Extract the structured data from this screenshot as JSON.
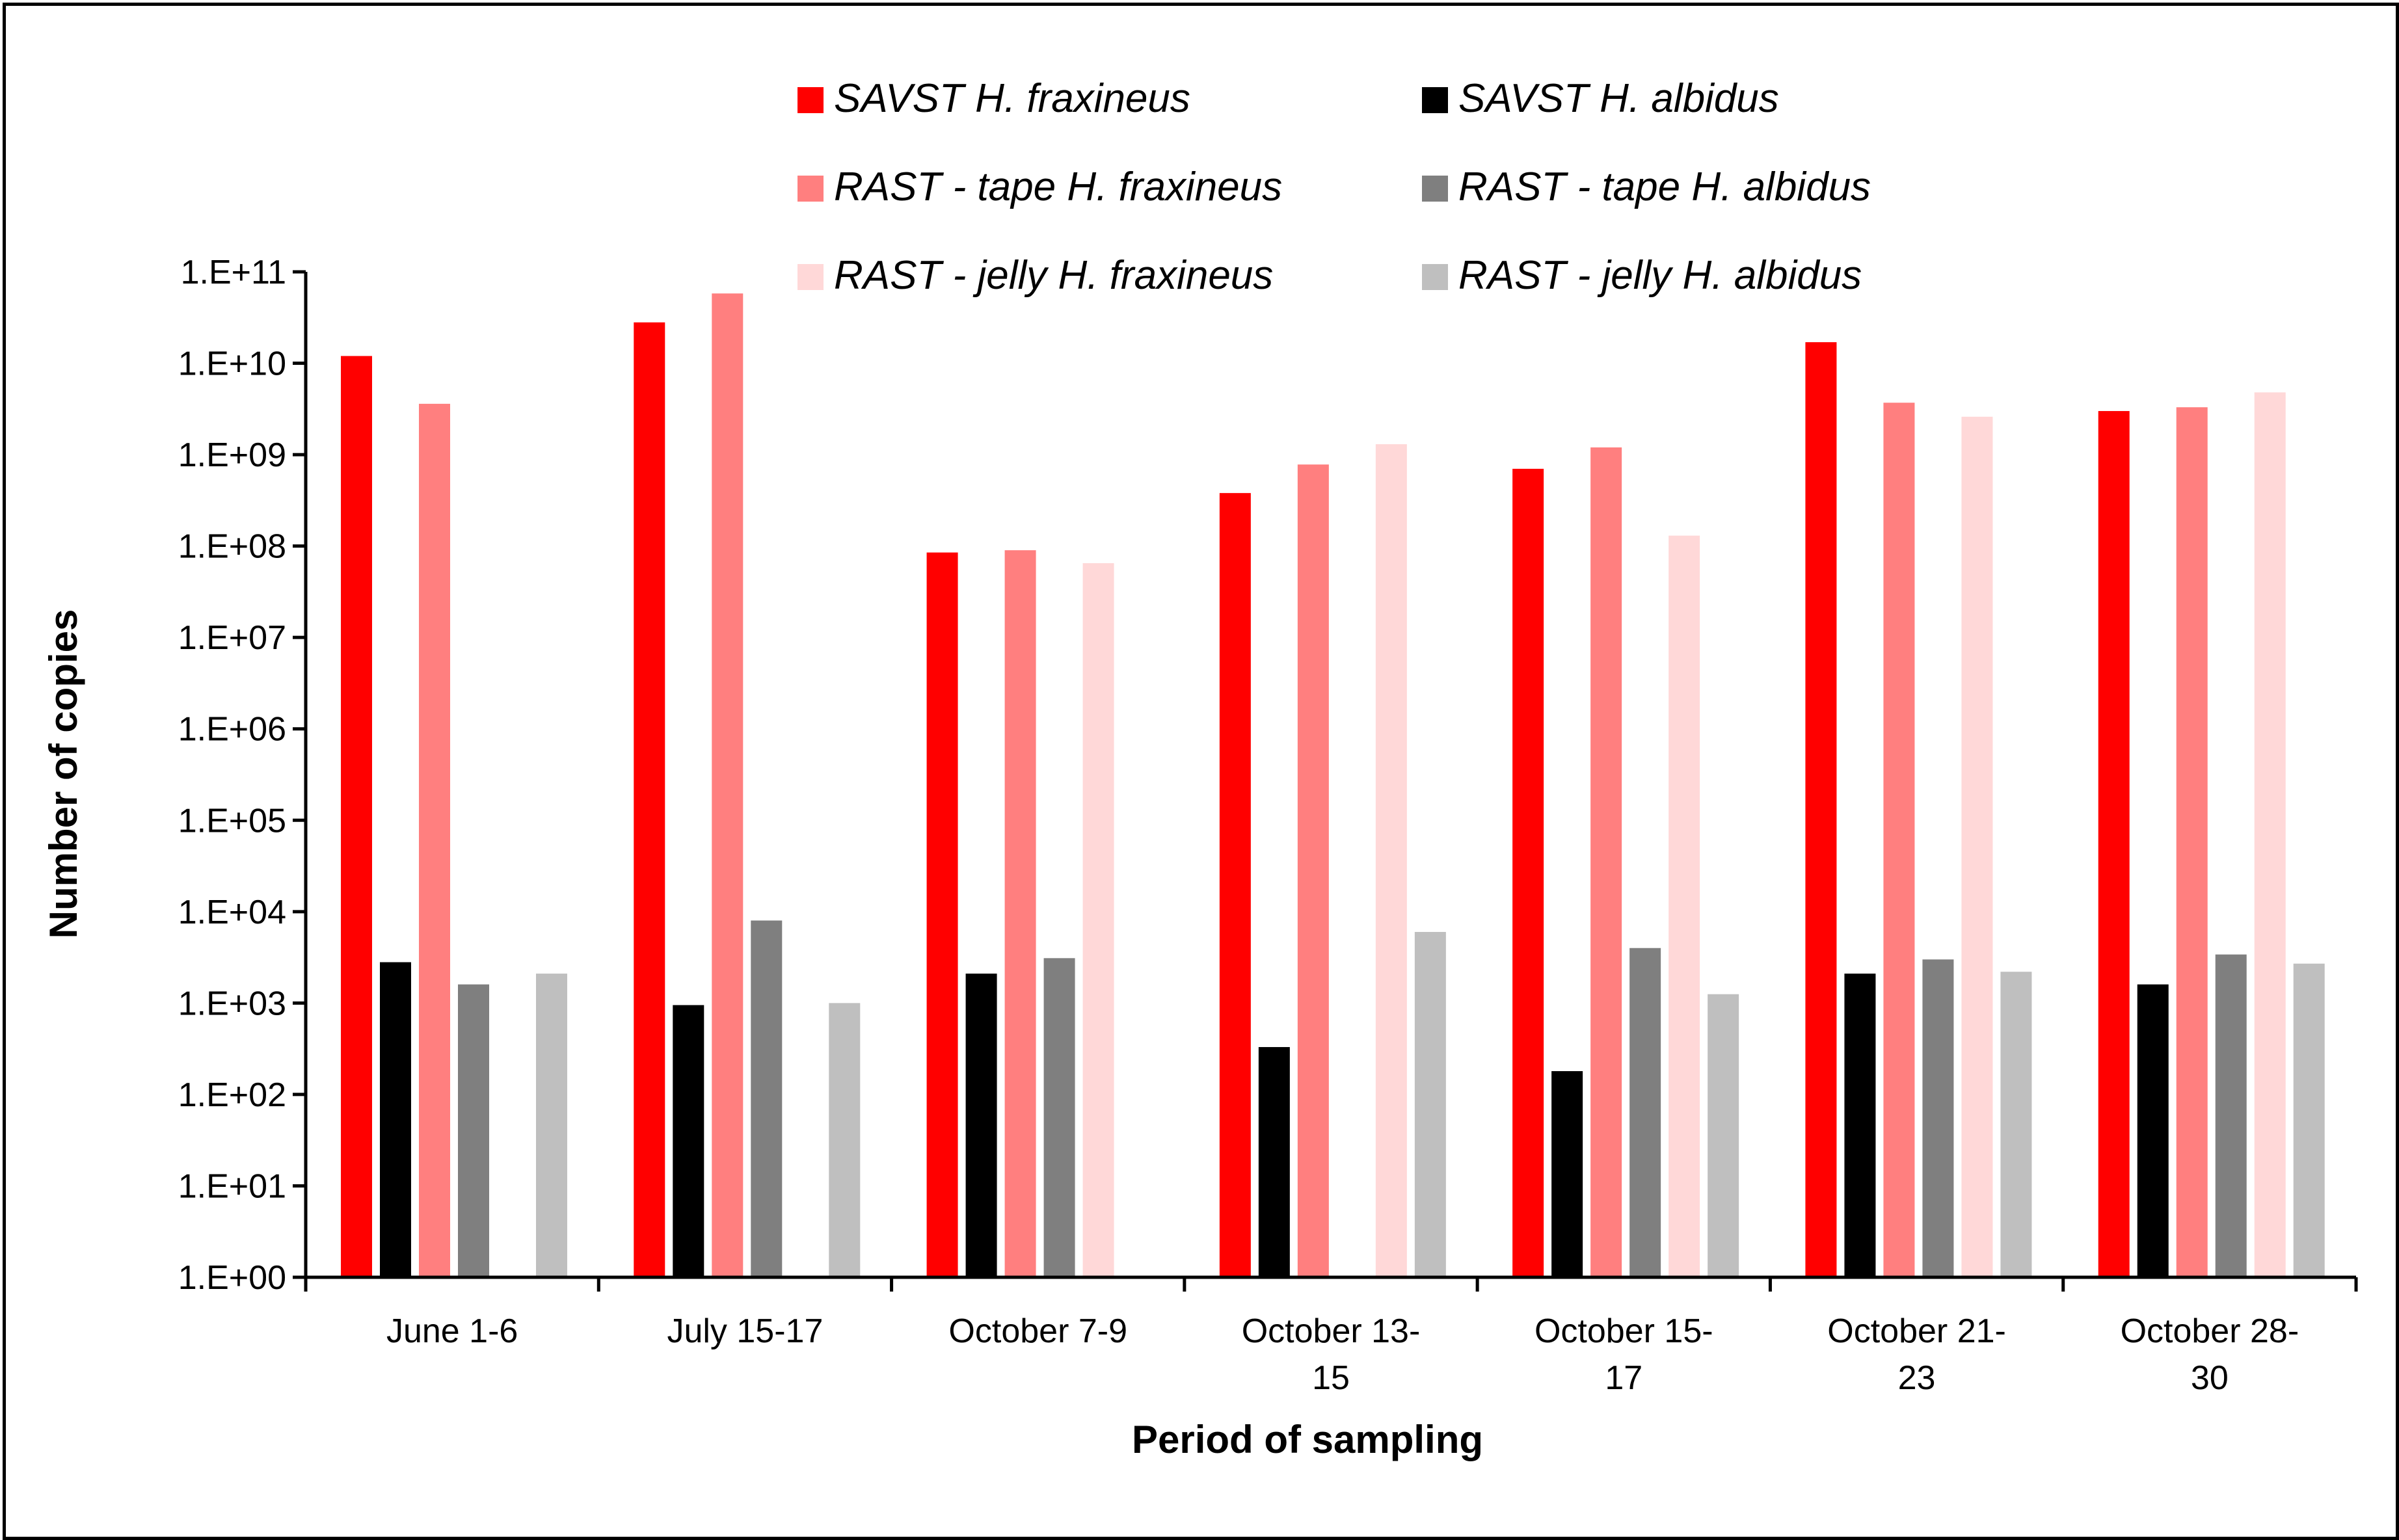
{
  "chart_data": {
    "type": "bar",
    "scale": "log10",
    "xlabel": "Period of sampling",
    "ylabel": "Number of copies",
    "ylim_exponents": [
      0,
      11
    ],
    "yticks": [
      "1.E+00",
      "1.E+01",
      "1.E+02",
      "1.E+03",
      "1.E+04",
      "1.E+05",
      "1.E+06",
      "1.E+07",
      "1.E+08",
      "1.E+09",
      "1.E+10",
      "1.E+11"
    ],
    "categories": [
      [
        "June 1-6"
      ],
      [
        "July 15-17"
      ],
      [
        "October 7-9"
      ],
      [
        "October 13-",
        "15"
      ],
      [
        "October 15-",
        "17"
      ],
      [
        "October 21-",
        "23"
      ],
      [
        "October 28-",
        "30"
      ]
    ],
    "legend_position": "top-center",
    "series": [
      {
        "name": "SAVST H. fraxineus",
        "color": "#ff0000",
        "values": [
          12000000000.0,
          28000000000.0,
          85000000.0,
          380000000.0,
          700000000.0,
          17000000000.0,
          3000000000.0
        ]
      },
      {
        "name": "SAVST H. albidus",
        "color": "#000000",
        "values": [
          2800,
          950,
          2100,
          330,
          180,
          2100,
          1600
        ]
      },
      {
        "name": "RAST - tape H. fraxineus",
        "color": "#ff7f7f",
        "values": [
          3600000000.0,
          58000000000.0,
          90000000.0,
          780000000.0,
          1200000000.0,
          3700000000.0,
          3300000000.0
        ]
      },
      {
        "name": "RAST - tape H. albidus",
        "color": "#7f7f7f",
        "values": [
          1600,
          8000,
          3100,
          null,
          4000,
          3000,
          3400
        ]
      },
      {
        "name": "RAST - jelly H. fraxineus",
        "color": "#ffd8d8",
        "values": [
          null,
          null,
          65000000.0,
          1300000000.0,
          130000000.0,
          2600000000.0,
          4800000000.0
        ]
      },
      {
        "name": "RAST - jelly H. albidus",
        "color": "#bfbfbf",
        "values": [
          2100,
          1000,
          null,
          6000,
          1250,
          2200,
          2700
        ]
      }
    ]
  }
}
